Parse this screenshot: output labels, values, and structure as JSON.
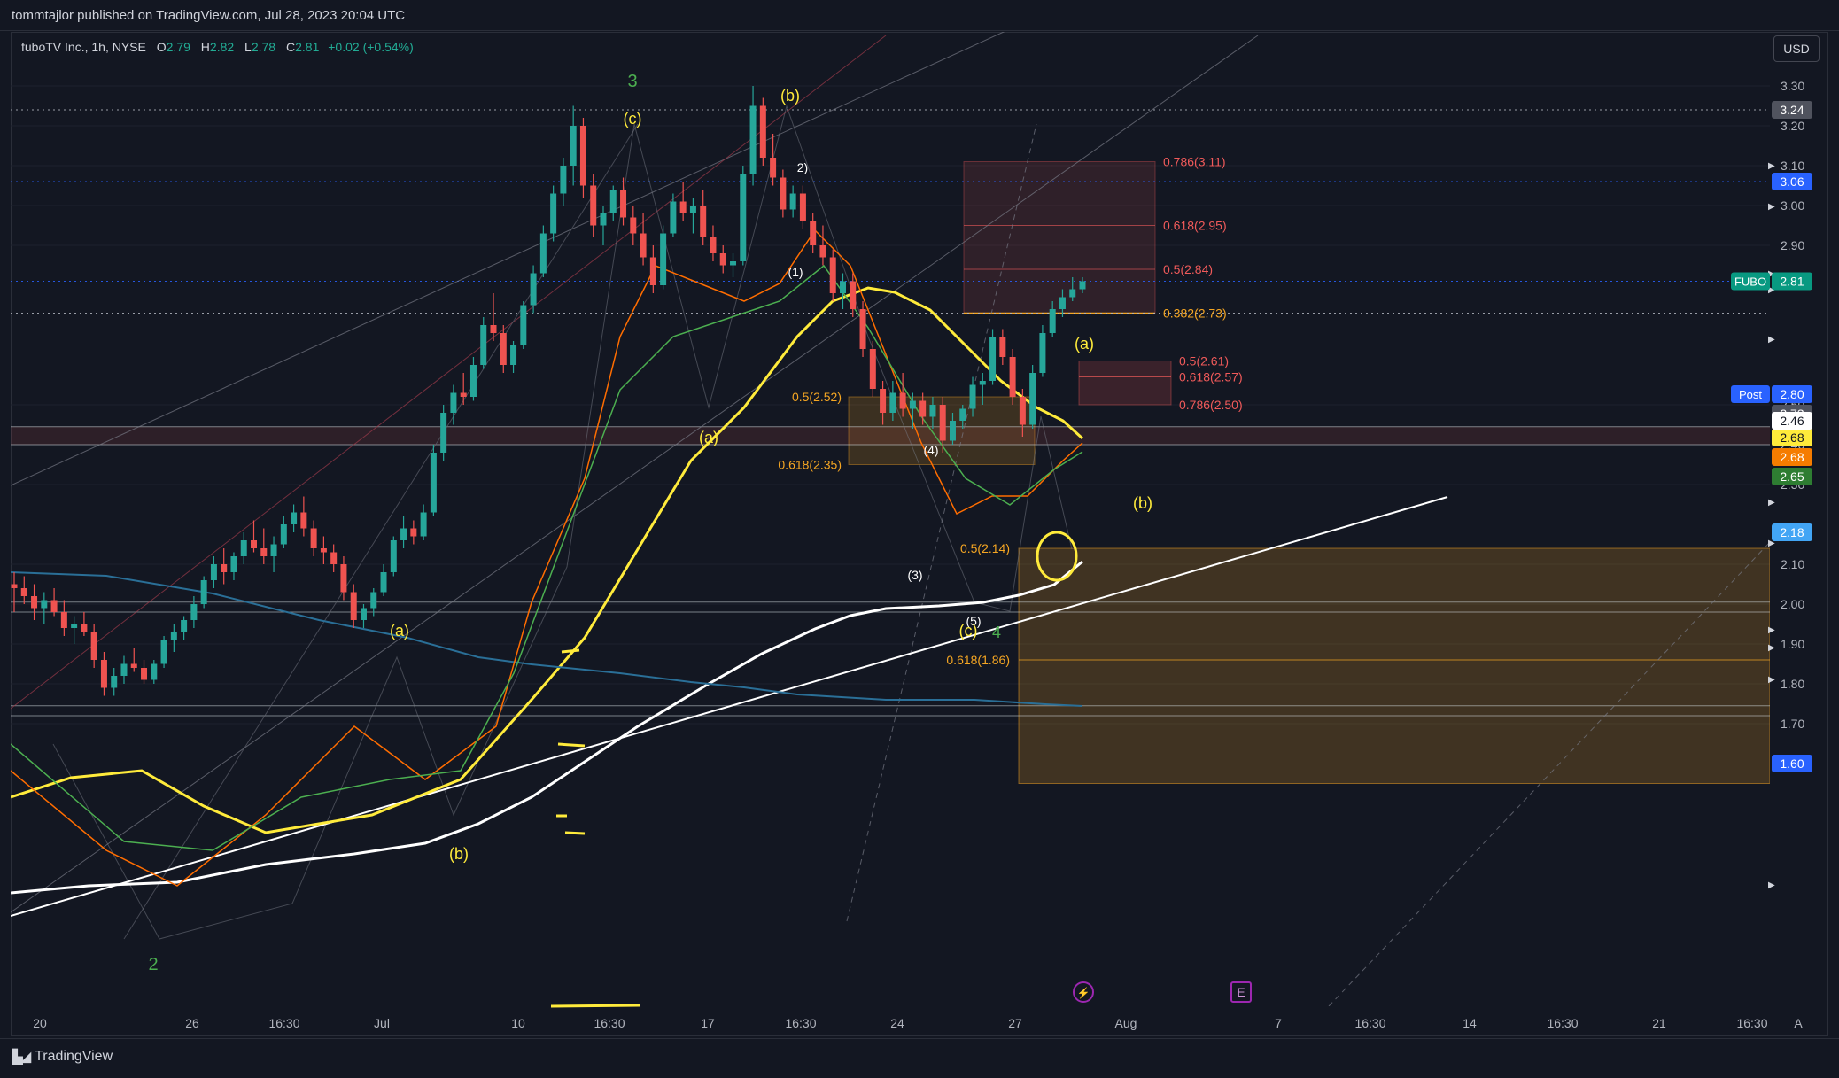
{
  "header": {
    "published": "tommtajlor published on TradingView.com, Jul 28, 2023 20:04 UTC"
  },
  "legend": {
    "symbol": "fuboTV Inc., 1h, NYSE",
    "o_label": "O",
    "o_value": "2.79",
    "h_label": "H",
    "h_value": "2.82",
    "l_label": "L",
    "l_value": "2.78",
    "c_label": "C",
    "c_value": "2.81",
    "change": "+0.02 (+0.54%)"
  },
  "currency_button": "USD",
  "footer": {
    "brand": "TradingView"
  },
  "colors": {
    "background": "#131722",
    "up": "#26a69a",
    "down": "#ef5350",
    "ma_yellow": "#ffeb3b",
    "ma_white": "#ffffff",
    "ma_orange": "#ff6d00",
    "ma_green": "#4caf50",
    "baseline_blue": "#2a6f97",
    "fib_orange": "#f5a623",
    "fib_red": "#f05a5a",
    "wave_green": "#4caf50",
    "wave_yellow": "#ffeb3b"
  },
  "chart_data": {
    "type": "candlestick",
    "ylim": [
      1.6,
      3.32
    ],
    "price_ticks": [
      "3.30",
      "3.20",
      "3.10",
      "3.00",
      "2.90",
      "2.50",
      "2.40",
      "2.30",
      "2.10",
      "2.00",
      "1.90",
      "1.80",
      "1.70"
    ],
    "x_ticks": [
      "20",
      "26",
      "16:30",
      "Jul",
      "10",
      "16:30",
      "17",
      "16:30",
      "24",
      "27",
      "Aug",
      "7",
      "16:30",
      "14",
      "16:30",
      "21",
      "16:30"
    ],
    "price_badges": [
      {
        "price": 3.24,
        "text": "3.24",
        "color": "#50535e"
      },
      {
        "price": 3.06,
        "text": "3.06",
        "color": "#2962ff"
      },
      {
        "price": 2.81,
        "text": "2.81",
        "color": "#089981",
        "tag": "FUBO"
      },
      {
        "price": 2.8,
        "text": "2.80",
        "color": "#2962ff",
        "tag": "Post"
      },
      {
        "price": 2.73,
        "text": "2.73",
        "color": "#50535e"
      },
      {
        "price": 2.68,
        "text": "2.68",
        "color": "#ffeb3b"
      },
      {
        "price": 2.68,
        "text": "2.68",
        "color": "#f57c00"
      },
      {
        "price": 2.65,
        "text": "2.65",
        "color": "#2e7d32"
      },
      {
        "price": 2.46,
        "text": "2.46",
        "color": "#ffffff"
      },
      {
        "price": 2.18,
        "text": "2.18",
        "color": "#42a5f5"
      },
      {
        "price": 1.6,
        "text": "1.60",
        "color": "#2962ff"
      }
    ],
    "fib_labels": [
      {
        "text": "0.786(3.11)",
        "price": 3.11,
        "color": "#f05a5a"
      },
      {
        "text": "0.618(2.95)",
        "price": 2.95,
        "color": "#f05a5a"
      },
      {
        "text": "0.5(2.84)",
        "price": 2.84,
        "color": "#f05a5a"
      },
      {
        "text": "0.382(2.73)",
        "price": 2.73,
        "color": "#f5a623"
      },
      {
        "text": "0.5(2.61)",
        "price": 2.61,
        "color": "#f05a5a"
      },
      {
        "text": "0.618(2.57)",
        "price": 2.57,
        "color": "#f05a5a"
      },
      {
        "text": "0.786(2.50)",
        "price": 2.5,
        "color": "#f05a5a"
      },
      {
        "text": "0.5(2.52)",
        "price": 2.52,
        "color": "#f5a623"
      },
      {
        "text": "0.618(2.35)",
        "price": 2.35,
        "color": "#f5a623"
      },
      {
        "text": "0.5(2.14)",
        "price": 2.14,
        "color": "#f5a623"
      },
      {
        "text": "0.618(1.86)",
        "price": 1.86,
        "color": "#f5a623"
      }
    ],
    "wave_labels": [
      {
        "text": "3",
        "color": "#4caf50"
      },
      {
        "text": "(c)",
        "color": "#ffeb3b"
      },
      {
        "text": "(b)",
        "color": "#ffeb3b"
      },
      {
        "text": "2)",
        "color": "#ffffff"
      },
      {
        "text": "(1)",
        "color": "#ffffff"
      },
      {
        "text": "(a)",
        "color": "#ffeb3b"
      },
      {
        "text": "(4)",
        "color": "#ffffff"
      },
      {
        "text": "(3)",
        "color": "#ffffff"
      },
      {
        "text": "(5)",
        "color": "#ffffff"
      },
      {
        "text": "(c)",
        "color": "#ffeb3b"
      },
      {
        "text": "4",
        "color": "#4caf50"
      },
      {
        "text": "(a)",
        "color": "#ffeb3b"
      },
      {
        "text": "(b)",
        "color": "#ffeb3b"
      },
      {
        "text": "(a)",
        "color": "#ffeb3b"
      },
      {
        "text": "(b)",
        "color": "#ffeb3b"
      },
      {
        "text": "2",
        "color": "#4caf50"
      }
    ],
    "ohlc": [
      [
        2.05,
        2.08,
        1.98,
        2.04
      ],
      [
        2.04,
        2.07,
        2.0,
        2.02
      ],
      [
        2.02,
        2.05,
        1.96,
        1.99
      ],
      [
        1.99,
        2.03,
        1.95,
        2.01
      ],
      [
        2.01,
        2.04,
        1.97,
        1.98
      ],
      [
        1.98,
        2.01,
        1.92,
        1.94
      ],
      [
        1.94,
        1.97,
        1.9,
        1.95
      ],
      [
        1.95,
        1.98,
        1.92,
        1.93
      ],
      [
        1.93,
        1.95,
        1.84,
        1.86
      ],
      [
        1.86,
        1.88,
        1.77,
        1.79
      ],
      [
        1.79,
        1.84,
        1.77,
        1.82
      ],
      [
        1.82,
        1.87,
        1.8,
        1.85
      ],
      [
        1.85,
        1.89,
        1.83,
        1.84
      ],
      [
        1.84,
        1.86,
        1.8,
        1.81
      ],
      [
        1.81,
        1.86,
        1.8,
        1.85
      ],
      [
        1.85,
        1.92,
        1.84,
        1.91
      ],
      [
        1.91,
        1.95,
        1.88,
        1.93
      ],
      [
        1.93,
        1.97,
        1.91,
        1.96
      ],
      [
        1.96,
        2.02,
        1.94,
        2.0
      ],
      [
        2.0,
        2.07,
        1.99,
        2.06
      ],
      [
        2.06,
        2.12,
        2.04,
        2.1
      ],
      [
        2.1,
        2.14,
        2.05,
        2.08
      ],
      [
        2.08,
        2.13,
        2.06,
        2.12
      ],
      [
        2.12,
        2.18,
        2.1,
        2.16
      ],
      [
        2.16,
        2.21,
        2.13,
        2.14
      ],
      [
        2.14,
        2.19,
        2.1,
        2.12
      ],
      [
        2.12,
        2.17,
        2.08,
        2.15
      ],
      [
        2.15,
        2.22,
        2.14,
        2.2
      ],
      [
        2.2,
        2.25,
        2.18,
        2.23
      ],
      [
        2.23,
        2.27,
        2.17,
        2.19
      ],
      [
        2.19,
        2.21,
        2.12,
        2.14
      ],
      [
        2.14,
        2.17,
        2.1,
        2.13
      ],
      [
        2.13,
        2.15,
        2.08,
        2.1
      ],
      [
        2.1,
        2.12,
        2.01,
        2.03
      ],
      [
        2.03,
        2.05,
        1.94,
        1.96
      ],
      [
        1.96,
        2.0,
        1.94,
        1.99
      ],
      [
        1.99,
        2.04,
        1.97,
        2.03
      ],
      [
        2.03,
        2.1,
        2.02,
        2.08
      ],
      [
        2.08,
        2.17,
        2.07,
        2.16
      ],
      [
        2.16,
        2.22,
        2.14,
        2.19
      ],
      [
        2.19,
        2.21,
        2.15,
        2.17
      ],
      [
        2.17,
        2.25,
        2.16,
        2.23
      ],
      [
        2.23,
        2.4,
        2.22,
        2.38
      ],
      [
        2.38,
        2.5,
        2.36,
        2.48
      ],
      [
        2.48,
        2.55,
        2.45,
        2.53
      ],
      [
        2.53,
        2.58,
        2.5,
        2.52
      ],
      [
        2.52,
        2.62,
        2.51,
        2.6
      ],
      [
        2.6,
        2.72,
        2.59,
        2.7
      ],
      [
        2.7,
        2.78,
        2.66,
        2.68
      ],
      [
        2.68,
        2.7,
        2.58,
        2.6
      ],
      [
        2.6,
        2.66,
        2.58,
        2.65
      ],
      [
        2.65,
        2.76,
        2.64,
        2.75
      ],
      [
        2.75,
        2.85,
        2.73,
        2.83
      ],
      [
        2.83,
        2.95,
        2.82,
        2.93
      ],
      [
        2.93,
        3.05,
        2.91,
        3.03
      ],
      [
        3.03,
        3.12,
        3.0,
        3.1
      ],
      [
        3.1,
        3.25,
        3.05,
        3.2
      ],
      [
        3.2,
        3.22,
        3.02,
        3.05
      ],
      [
        3.05,
        3.08,
        2.92,
        2.95
      ],
      [
        2.95,
        3.0,
        2.9,
        2.98
      ],
      [
        2.98,
        3.05,
        2.96,
        3.04
      ],
      [
        3.04,
        3.07,
        2.95,
        2.97
      ],
      [
        2.97,
        3.0,
        2.9,
        2.93
      ],
      [
        2.93,
        2.98,
        2.85,
        2.87
      ],
      [
        2.87,
        2.9,
        2.78,
        2.8
      ],
      [
        2.8,
        2.95,
        2.79,
        2.93
      ],
      [
        2.93,
        3.03,
        2.92,
        3.01
      ],
      [
        3.01,
        3.06,
        2.96,
        2.98
      ],
      [
        2.98,
        3.02,
        2.93,
        3.0
      ],
      [
        3.0,
        3.04,
        2.9,
        2.92
      ],
      [
        2.92,
        2.95,
        2.86,
        2.88
      ],
      [
        2.88,
        2.9,
        2.83,
        2.85
      ],
      [
        2.85,
        2.88,
        2.82,
        2.86
      ],
      [
        2.86,
        3.1,
        2.85,
        3.08
      ],
      [
        3.08,
        3.3,
        3.05,
        3.25
      ],
      [
        3.25,
        3.27,
        3.1,
        3.12
      ],
      [
        3.12,
        3.18,
        3.05,
        3.07
      ],
      [
        3.07,
        3.09,
        2.97,
        2.99
      ],
      [
        2.99,
        3.05,
        2.97,
        3.03
      ],
      [
        3.03,
        3.05,
        2.94,
        2.96
      ],
      [
        2.96,
        2.98,
        2.88,
        2.9
      ],
      [
        2.9,
        2.95,
        2.85,
        2.87
      ],
      [
        2.87,
        2.89,
        2.76,
        2.78
      ],
      [
        2.78,
        2.83,
        2.74,
        2.81
      ],
      [
        2.81,
        2.83,
        2.72,
        2.74
      ],
      [
        2.74,
        2.76,
        2.62,
        2.64
      ],
      [
        2.64,
        2.66,
        2.52,
        2.54
      ],
      [
        2.54,
        2.56,
        2.45,
        2.48
      ],
      [
        2.48,
        2.56,
        2.46,
        2.53
      ],
      [
        2.53,
        2.58,
        2.47,
        2.49
      ],
      [
        2.49,
        2.53,
        2.44,
        2.51
      ],
      [
        2.51,
        2.53,
        2.45,
        2.47
      ],
      [
        2.47,
        2.52,
        2.44,
        2.5
      ],
      [
        2.5,
        2.52,
        2.38,
        2.41
      ],
      [
        2.41,
        2.48,
        2.4,
        2.46
      ],
      [
        2.46,
        2.5,
        2.44,
        2.49
      ],
      [
        2.49,
        2.57,
        2.47,
        2.55
      ],
      [
        2.55,
        2.58,
        2.5,
        2.56
      ],
      [
        2.56,
        2.69,
        2.55,
        2.67
      ],
      [
        2.67,
        2.69,
        2.6,
        2.62
      ],
      [
        2.62,
        2.64,
        2.5,
        2.52
      ],
      [
        2.52,
        2.54,
        2.42,
        2.45
      ],
      [
        2.45,
        2.6,
        2.44,
        2.58
      ],
      [
        2.58,
        2.7,
        2.57,
        2.68
      ],
      [
        2.68,
        2.76,
        2.67,
        2.74
      ],
      [
        2.74,
        2.79,
        2.72,
        2.77
      ],
      [
        2.77,
        2.82,
        2.76,
        2.79
      ],
      [
        2.79,
        2.82,
        2.78,
        2.81
      ]
    ]
  }
}
